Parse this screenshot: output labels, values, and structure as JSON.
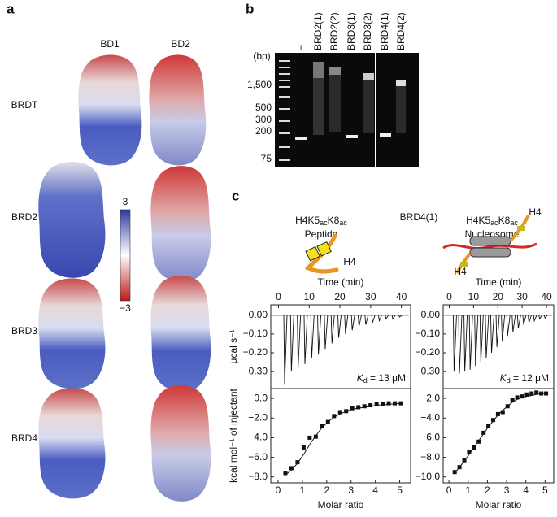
{
  "panel_labels": [
    "a",
    "b",
    "c"
  ],
  "panel_a": {
    "columns": [
      "BD1",
      "BD2"
    ],
    "rows": [
      "BRDT",
      "BRD2",
      "BRD3",
      "BRD4"
    ],
    "colorbar": [
      "3",
      "−3"
    ]
  },
  "panel_b": {
    "unit": "(bp)",
    "markers": [
      "1,500",
      "500",
      "300",
      "200",
      "75"
    ],
    "lanes": [
      "–",
      "BRD2(1)",
      "BRD2(2)",
      "BRD3(1)",
      "BRD3(2)",
      "BRD4(1)",
      "BRD4(2)"
    ]
  },
  "panel_c": {
    "title": "BRD4(1)",
    "peptide": {
      "name": [
        "H4K5",
        "ac",
        "K8",
        "ac"
      ],
      "kind": "Peptide",
      "tag": "H4"
    },
    "nucleosome": {
      "name": [
        "H4K5",
        "ac",
        "K8",
        "ac"
      ],
      "kind": "Nucleosome",
      "tags": [
        "H4",
        "H4"
      ]
    }
  },
  "chart_data": [
    {
      "type": "spike",
      "xlabel": "Time (min)",
      "ylabel": "μcal s⁻¹",
      "xlim": [
        -2.5,
        43
      ],
      "xticks": [
        0,
        10,
        20,
        30,
        40
      ],
      "ylim": [
        -0.39,
        0.055
      ],
      "yticks": [
        {
          "value": 0,
          "label": "0.00"
        },
        {
          "value": -0.1,
          "label": "−0.10"
        },
        {
          "value": -0.2,
          "label": "−0.20"
        },
        {
          "value": -0.3,
          "label": "−0.30"
        }
      ],
      "x": [
        2,
        4.2,
        6.4,
        8.6,
        10.8,
        13,
        15.2,
        17.4,
        19.6,
        21.8,
        24,
        26.2,
        28.4,
        30.6,
        32.8,
        35,
        37.2,
        39.4
      ],
      "values": [
        -0.37,
        -0.3,
        -0.28,
        -0.26,
        -0.23,
        -0.21,
        -0.18,
        -0.15,
        -0.12,
        -0.1,
        -0.08,
        -0.06,
        -0.05,
        -0.04,
        -0.03,
        -0.02,
        -0.02,
        -0.01
      ],
      "color": "#111111",
      "baseline_color": "#d42020",
      "annotation": [
        "K",
        "d",
        " = 13 μM"
      ]
    },
    {
      "type": "spike",
      "xlabel": "Time (min)",
      "xlim": [
        -2.5,
        43
      ],
      "xticks": [
        0,
        10,
        20,
        30,
        40
      ],
      "ylim": [
        -0.39,
        0.055
      ],
      "yticks": [
        {
          "value": 0,
          "label": "0.00"
        },
        {
          "value": -0.1,
          "label": "−0.10"
        },
        {
          "value": -0.2,
          "label": "−0.20"
        },
        {
          "value": -0.3,
          "label": "−0.30"
        }
      ],
      "x": [
        2,
        4.2,
        6.4,
        8.6,
        10.8,
        13,
        15.2,
        17.4,
        19.6,
        21.8,
        24,
        26.2,
        28.4,
        30.6,
        32.8,
        35,
        37.2,
        39.4
      ],
      "values": [
        -0.3,
        -0.31,
        -0.3,
        -0.29,
        -0.27,
        -0.25,
        -0.23,
        -0.2,
        -0.17,
        -0.14,
        -0.11,
        -0.09,
        -0.07,
        -0.05,
        -0.04,
        -0.03,
        -0.02,
        -0.015
      ],
      "color": "#111111",
      "baseline_color": "#d42020",
      "annotation": [
        "K",
        "d",
        " = 12 μM"
      ]
    },
    {
      "type": "scatter",
      "xlabel": "Molar ratio",
      "ylabel": "kcal mol⁻¹ of injectant",
      "xlim": [
        -0.3,
        5.45
      ],
      "xticks": [
        0,
        1,
        2,
        3,
        4,
        5
      ],
      "ylim": [
        -8.6,
        1.0
      ],
      "yticks": [
        {
          "value": 0,
          "label": "0.0"
        },
        {
          "value": -2,
          "label": "−2.0"
        },
        {
          "value": -4,
          "label": "−4.0"
        },
        {
          "value": -6,
          "label": "−6.0"
        },
        {
          "value": -8,
          "label": "−8.0"
        }
      ],
      "x": [
        0.3,
        0.55,
        0.8,
        1.05,
        1.3,
        1.55,
        1.8,
        2.05,
        2.3,
        2.55,
        2.8,
        3.05,
        3.3,
        3.55,
        3.8,
        4.05,
        4.3,
        4.55,
        4.8,
        5.05
      ],
      "values": [
        -7.6,
        -7.1,
        -6.5,
        -5.0,
        -4.0,
        -3.9,
        -2.8,
        -2.4,
        -1.8,
        -1.4,
        -1.3,
        -1.0,
        -0.9,
        -0.8,
        -0.7,
        -0.6,
        -0.6,
        -0.5,
        -0.5,
        -0.5
      ],
      "fit": [
        -7.8,
        -7.3,
        -6.6,
        -5.7,
        -4.7,
        -3.8,
        -3.0,
        -2.4,
        -1.9,
        -1.6,
        -1.3,
        -1.1,
        -1.0,
        -0.9,
        -0.8,
        -0.7,
        -0.65,
        -0.6,
        -0.55,
        -0.5
      ],
      "color": "#111111"
    },
    {
      "type": "scatter",
      "xlabel": "Molar ratio",
      "xlim": [
        -0.3,
        5.45
      ],
      "xticks": [
        0,
        1,
        2,
        3,
        4,
        5
      ],
      "ylim": [
        -10.6,
        -1.0
      ],
      "yticks": [
        {
          "value": -2,
          "label": "−2.0"
        },
        {
          "value": -4,
          "label": "−4.0"
        },
        {
          "value": -6,
          "label": "−6.0"
        },
        {
          "value": -8,
          "label": "−8.0"
        },
        {
          "value": -10,
          "label": "−10.0"
        }
      ],
      "x": [
        0.3,
        0.55,
        0.8,
        1.05,
        1.3,
        1.55,
        1.8,
        2.05,
        2.3,
        2.55,
        2.8,
        3.05,
        3.3,
        3.55,
        3.8,
        4.05,
        4.3,
        4.55,
        4.8,
        5.05
      ],
      "values": [
        -9.5,
        -9.0,
        -8.3,
        -7.5,
        -7.0,
        -6.4,
        -5.5,
        -4.8,
        -4.2,
        -3.6,
        -3.4,
        -2.8,
        -2.2,
        -1.9,
        -1.8,
        -1.6,
        -1.5,
        -1.4,
        -1.5,
        -1.5
      ],
      "fit": [
        -9.6,
        -9.0,
        -8.4,
        -7.7,
        -7.0,
        -6.3,
        -5.6,
        -4.9,
        -4.3,
        -3.7,
        -3.2,
        -2.8,
        -2.4,
        -2.1,
        -1.9,
        -1.8,
        -1.7,
        -1.6,
        -1.55,
        -1.5
      ],
      "color": "#111111"
    }
  ]
}
